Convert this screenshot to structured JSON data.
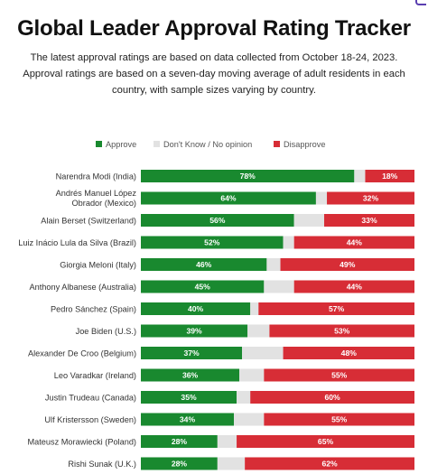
{
  "header": {
    "title": "Global Leader Approval Rating Tracker",
    "subtitle_lines": [
      "The latest approval ratings are based on data collected from October 18-24, 2023.",
      "Approval ratings are based on a seven-day moving average of adult residents in each",
      "country, with sample sizes varying by country."
    ]
  },
  "colors": {
    "approve": "#19892f",
    "dont_know": "#e2e2e2",
    "disapprove": "#d72d36"
  },
  "chart_data": {
    "type": "bar",
    "orientation": "horizontal",
    "stacked": true,
    "legend_position": "top",
    "grid": false,
    "xlim": [
      0,
      100
    ],
    "categories": [
      "Narendra Modi (India)",
      "Andrés Manuel López Obrador (Mexico)",
      "Alain Berset (Switzerland)",
      "Luiz Inácio Lula da Silva (Brazil)",
      "Giorgia Meloni (Italy)",
      "Anthony Albanese (Australia)",
      "Pedro Sánchez (Spain)",
      "Joe Biden (U.S.)",
      "Alexander De Croo (Belgium)",
      "Leo Varadkar (Ireland)",
      "Justin Trudeau (Canada)",
      "Ulf Kristersson (Sweden)",
      "Mateusz Morawiecki (Poland)",
      "Rishi Sunak (U.K.)"
    ],
    "series": [
      {
        "name": "Approve",
        "values": [
          78,
          64,
          56,
          52,
          46,
          45,
          40,
          39,
          37,
          36,
          35,
          34,
          28,
          28
        ],
        "labels": [
          "78%",
          "64%",
          "56%",
          "52%",
          "46%",
          "45%",
          "40%",
          "39%",
          "37%",
          "36%",
          "35%",
          "34%",
          "28%",
          "28%"
        ]
      },
      {
        "name": "Don't Know / No opinion",
        "values": [
          4,
          4,
          11,
          4,
          5,
          11,
          3,
          8,
          15,
          9,
          5,
          11,
          7,
          10
        ]
      },
      {
        "name": "Disapprove",
        "values": [
          18,
          32,
          33,
          44,
          49,
          44,
          57,
          53,
          48,
          55,
          60,
          55,
          65,
          62
        ],
        "labels": [
          "18%",
          "32%",
          "33%",
          "44%",
          "49%",
          "44%",
          "57%",
          "53%",
          "48%",
          "55%",
          "60%",
          "55%",
          "65%",
          "62%"
        ]
      }
    ]
  }
}
